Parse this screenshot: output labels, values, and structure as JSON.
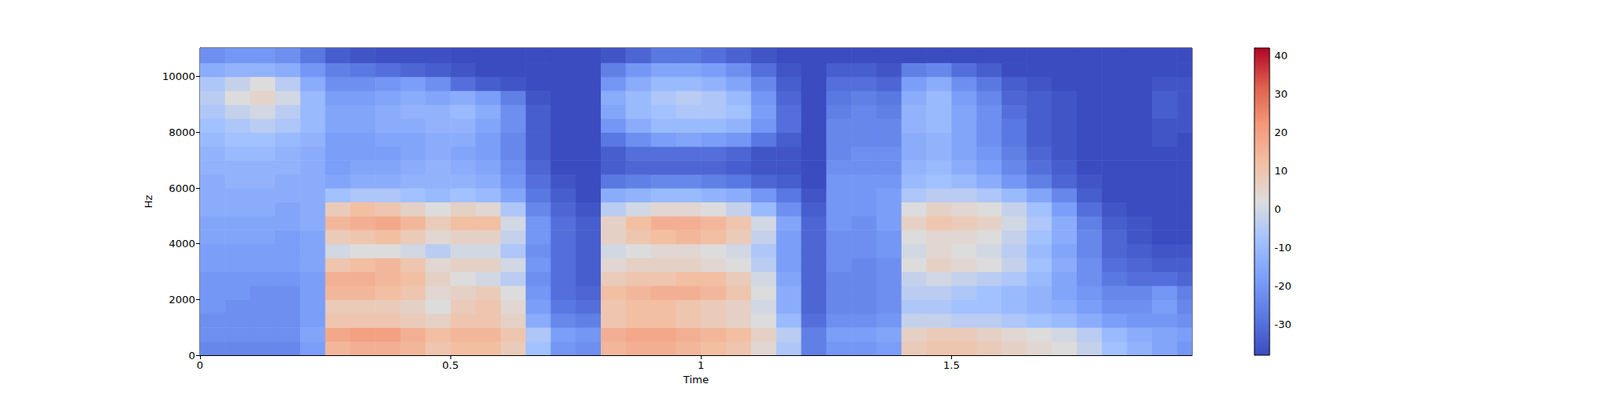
{
  "chart_data": {
    "type": "heatmap",
    "x_label": "Time",
    "y_label": "Hz",
    "xlim": [
      0,
      1.98
    ],
    "xticks": [
      0,
      0.5,
      1,
      1.5
    ],
    "ylim": [
      0,
      11025
    ],
    "yticks": [
      0,
      2000,
      4000,
      6000,
      8000,
      10000
    ],
    "x": [
      0,
      0.05,
      0.1,
      0.15,
      0.2,
      0.25,
      0.3,
      0.35,
      0.4,
      0.45,
      0.5,
      0.55,
      0.6,
      0.65,
      0.7,
      0.75,
      0.8,
      0.85,
      0.9,
      0.95,
      1,
      1.05,
      1.1,
      1.15,
      1.2,
      1.25,
      1.3,
      1.35,
      1.4,
      1.45,
      1.5,
      1.55,
      1.6,
      1.65,
      1.7,
      1.75,
      1.8,
      1.85,
      1.9,
      1.95
    ],
    "y": [
      0,
      500,
      1000,
      1500,
      2000,
      2500,
      3000,
      3500,
      4000,
      4500,
      5000,
      5500,
      6000,
      6500,
      7000,
      7500,
      8000,
      8500,
      9000,
      9500,
      10000,
      10500
    ],
    "z": [
      [
        -24,
        -24,
        -24,
        -24,
        -18,
        14,
        16,
        16,
        14,
        10,
        12,
        12,
        8,
        -8,
        -20,
        -22,
        14,
        16,
        16,
        14,
        12,
        10,
        4,
        -6,
        -26,
        -20,
        -20,
        -18,
        8,
        10,
        10,
        8,
        6,
        4,
        2,
        -2,
        -8,
        -12,
        -16,
        -20
      ],
      [
        -22,
        -22,
        -22,
        -22,
        -16,
        18,
        20,
        20,
        16,
        12,
        14,
        14,
        10,
        -6,
        -18,
        -20,
        16,
        18,
        18,
        16,
        14,
        12,
        6,
        -4,
        -26,
        -18,
        -18,
        -16,
        6,
        8,
        8,
        6,
        4,
        2,
        0,
        -4,
        -10,
        -14,
        -16,
        -18
      ],
      [
        -22,
        -22,
        -22,
        -22,
        -18,
        10,
        10,
        10,
        8,
        6,
        10,
        10,
        6,
        -14,
        -24,
        -26,
        10,
        12,
        12,
        10,
        8,
        6,
        2,
        -10,
        -30,
        -22,
        -22,
        -20,
        -2,
        -2,
        -4,
        -4,
        -6,
        -8,
        -10,
        -14,
        -18,
        -20,
        -20,
        -22
      ],
      [
        -20,
        -22,
        -22,
        -22,
        -18,
        8,
        8,
        8,
        6,
        2,
        8,
        10,
        4,
        -18,
        -28,
        -30,
        10,
        12,
        12,
        10,
        8,
        6,
        0,
        -14,
        -32,
        -24,
        -24,
        -22,
        -6,
        -6,
        -8,
        -8,
        -10,
        -12,
        -14,
        -18,
        -22,
        -22,
        -18,
        -24
      ],
      [
        -20,
        -20,
        -22,
        -22,
        -18,
        14,
        14,
        12,
        10,
        4,
        6,
        8,
        2,
        -20,
        -30,
        -32,
        12,
        14,
        16,
        16,
        14,
        10,
        2,
        -14,
        -32,
        -24,
        -24,
        -22,
        -4,
        -4,
        -6,
        -8,
        -10,
        -12,
        -16,
        -20,
        -24,
        -24,
        -20,
        -26
      ],
      [
        -20,
        -20,
        -20,
        -20,
        -18,
        16,
        16,
        14,
        12,
        6,
        2,
        0,
        -4,
        -22,
        -30,
        -34,
        8,
        10,
        10,
        12,
        12,
        8,
        0,
        -16,
        -32,
        -24,
        -24,
        -22,
        -2,
        0,
        -2,
        -4,
        -6,
        -10,
        -16,
        -22,
        -28,
        -30,
        -30,
        -32
      ],
      [
        -18,
        -18,
        -18,
        -18,
        -16,
        10,
        12,
        14,
        10,
        4,
        6,
        6,
        0,
        -20,
        -30,
        -34,
        4,
        6,
        6,
        6,
        4,
        2,
        -4,
        -18,
        -32,
        -22,
        -24,
        -22,
        2,
        6,
        4,
        2,
        -2,
        -8,
        -14,
        -22,
        -30,
        -32,
        -34,
        -34
      ],
      [
        -18,
        -18,
        -18,
        -18,
        -16,
        0,
        2,
        2,
        0,
        -4,
        0,
        0,
        -6,
        -22,
        -30,
        -34,
        0,
        2,
        4,
        4,
        2,
        0,
        -6,
        -18,
        -32,
        -22,
        -22,
        -20,
        0,
        4,
        2,
        0,
        -4,
        -10,
        -16,
        -24,
        -32,
        -34,
        -36,
        -36
      ],
      [
        -16,
        -16,
        -16,
        -18,
        -16,
        8,
        10,
        12,
        8,
        4,
        6,
        6,
        -2,
        -20,
        -30,
        -34,
        6,
        10,
        12,
        14,
        12,
        8,
        -2,
        -18,
        -32,
        -22,
        -22,
        -20,
        2,
        4,
        4,
        2,
        -2,
        -8,
        -14,
        -24,
        -32,
        -36,
        -38,
        -38
      ],
      [
        -16,
        -16,
        -16,
        -16,
        -14,
        14,
        16,
        18,
        14,
        8,
        12,
        12,
        0,
        -20,
        -30,
        -34,
        6,
        12,
        16,
        16,
        14,
        10,
        0,
        -16,
        -32,
        -20,
        -22,
        -18,
        6,
        10,
        8,
        6,
        0,
        -6,
        -14,
        -26,
        -34,
        -36,
        -38,
        -38
      ],
      [
        -14,
        -14,
        -14,
        -16,
        -14,
        8,
        12,
        10,
        6,
        2,
        6,
        4,
        -6,
        -24,
        -32,
        -36,
        -4,
        0,
        4,
        4,
        2,
        -2,
        -10,
        -22,
        -34,
        -20,
        -20,
        -18,
        2,
        6,
        4,
        2,
        -2,
        -8,
        -18,
        -30,
        -36,
        -38,
        -38,
        -38
      ],
      [
        -14,
        -14,
        -14,
        -14,
        -14,
        -8,
        -6,
        -6,
        -8,
        -10,
        -8,
        -10,
        -16,
        -28,
        -34,
        -38,
        -14,
        -12,
        -10,
        -10,
        -12,
        -14,
        -20,
        -28,
        -36,
        -20,
        -20,
        -18,
        -6,
        -4,
        -4,
        -6,
        -10,
        -16,
        -24,
        -34,
        -38,
        -38,
        -38,
        -38
      ],
      [
        -14,
        -12,
        -12,
        -14,
        -14,
        -16,
        -14,
        -14,
        -12,
        -12,
        -12,
        -14,
        -20,
        -30,
        -36,
        -38,
        -28,
        -26,
        -24,
        -24,
        -26,
        -28,
        -32,
        -34,
        -38,
        -20,
        -20,
        -20,
        -10,
        -8,
        -10,
        -14,
        -20,
        -26,
        -32,
        -36,
        -38,
        -38,
        -38,
        -38
      ],
      [
        -12,
        -12,
        -12,
        -12,
        -14,
        -18,
        -16,
        -16,
        -14,
        -12,
        -14,
        -16,
        -22,
        -32,
        -38,
        -38,
        -34,
        -32,
        -32,
        -32,
        -32,
        -34,
        -36,
        -36,
        -38,
        -22,
        -22,
        -22,
        -12,
        -10,
        -14,
        -18,
        -24,
        -30,
        -34,
        -38,
        -38,
        -38,
        -38,
        -38
      ],
      [
        -12,
        -10,
        -10,
        -12,
        -14,
        -18,
        -18,
        -18,
        -16,
        -14,
        -16,
        -18,
        -24,
        -34,
        -38,
        -38,
        -34,
        -30,
        -30,
        -30,
        -30,
        -32,
        -36,
        -36,
        -38,
        -24,
        -22,
        -22,
        -14,
        -12,
        -16,
        -20,
        -26,
        -32,
        -36,
        -38,
        -38,
        -38,
        -38,
        -38
      ],
      [
        -10,
        -8,
        -8,
        -10,
        -12,
        -18,
        -18,
        -16,
        -16,
        -14,
        -14,
        -18,
        -24,
        -34,
        -38,
        -38,
        -28,
        -22,
        -18,
        -16,
        -18,
        -20,
        -28,
        -34,
        -38,
        -24,
        -24,
        -24,
        -14,
        -12,
        -16,
        -22,
        -28,
        -34,
        -36,
        -38,
        -38,
        -38,
        -36,
        -38
      ],
      [
        -8,
        -6,
        -4,
        -6,
        -10,
        -16,
        -16,
        -14,
        -14,
        -12,
        -12,
        -16,
        -22,
        -34,
        -38,
        -38,
        -20,
        -14,
        -10,
        -10,
        -10,
        -12,
        -20,
        -30,
        -38,
        -24,
        -24,
        -24,
        -12,
        -10,
        -16,
        -22,
        -28,
        -34,
        -36,
        -38,
        -38,
        -38,
        -36,
        -36
      ],
      [
        -6,
        -2,
        0,
        -4,
        -10,
        -16,
        -16,
        -14,
        -12,
        -12,
        -10,
        -14,
        -22,
        -34,
        -38,
        -38,
        -16,
        -10,
        -8,
        -6,
        -6,
        -8,
        -18,
        -30,
        -38,
        -26,
        -24,
        -26,
        -12,
        -10,
        -16,
        -22,
        -30,
        -34,
        -36,
        -38,
        -38,
        -38,
        -34,
        -36
      ],
      [
        -4,
        2,
        5,
        0,
        -10,
        -18,
        -18,
        -16,
        -14,
        -16,
        -14,
        -18,
        -26,
        -36,
        -38,
        -38,
        -14,
        -10,
        -6,
        -4,
        -6,
        -10,
        -20,
        -32,
        -38,
        -28,
        -26,
        -28,
        -14,
        -10,
        -18,
        -24,
        -32,
        -34,
        -36,
        -38,
        -38,
        -38,
        -34,
        -36
      ],
      [
        -6,
        -2,
        2,
        -4,
        -14,
        -22,
        -22,
        -20,
        -18,
        -22,
        -30,
        -34,
        -36,
        -38,
        -38,
        -38,
        -20,
        -14,
        -10,
        -10,
        -12,
        -16,
        -24,
        -34,
        -38,
        -30,
        -30,
        -32,
        -18,
        -14,
        -22,
        -28,
        -34,
        -36,
        -38,
        -38,
        -38,
        -38,
        -36,
        -36
      ],
      [
        -14,
        -12,
        -12,
        -14,
        -20,
        -26,
        -28,
        -30,
        -32,
        -34,
        -36,
        -38,
        -38,
        -38,
        -38,
        -38,
        -26,
        -20,
        -16,
        -16,
        -18,
        -22,
        -30,
        -36,
        -38,
        -34,
        -34,
        -36,
        -26,
        -24,
        -30,
        -34,
        -38,
        -38,
        -38,
        -38,
        -38,
        -38,
        -38,
        -38
      ],
      [
        -22,
        -20,
        -20,
        -22,
        -28,
        -34,
        -36,
        -37,
        -37,
        -37,
        -38,
        -38,
        -38,
        -38,
        -38,
        -38,
        -36,
        -32,
        -28,
        -28,
        -30,
        -33,
        -36,
        -38,
        -38,
        -38,
        -38,
        -38,
        -38,
        -38,
        -38,
        -38,
        -38,
        -38,
        -38,
        -38,
        -38,
        -38,
        -38,
        -38
      ]
    ],
    "colorbar_range": [
      -38,
      42
    ],
    "colorbar_ticks": [
      -30,
      -20,
      -10,
      0,
      10,
      20,
      30,
      40
    ]
  }
}
